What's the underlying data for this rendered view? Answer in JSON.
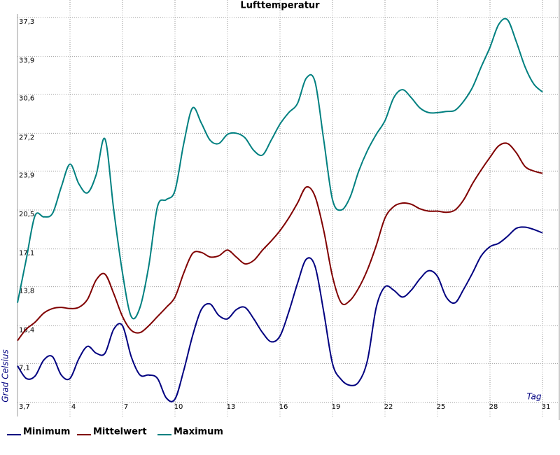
{
  "chart_data": {
    "type": "line",
    "title": "Lufttemperatur",
    "xlabel": "Tag",
    "ylabel": "Grad Celsius",
    "x": [
      1,
      1.5,
      2,
      2.5,
      3,
      3.5,
      4,
      4.5,
      5,
      5.5,
      6,
      6.5,
      7,
      7.5,
      8,
      8.5,
      9,
      9.5,
      10,
      10.5,
      11,
      11.5,
      12,
      12.5,
      13,
      13.5,
      14,
      14.5,
      15,
      15.5,
      16,
      16.5,
      17,
      17.5,
      18,
      18.5,
      19,
      19.5,
      20,
      20.5,
      21,
      21.5,
      22,
      22.5,
      23,
      23.5,
      24,
      24.5,
      25,
      25.5,
      26,
      26.5,
      27,
      27.5,
      28,
      28.5,
      29,
      29.5,
      30,
      30.5,
      31
    ],
    "series": [
      {
        "name": "Minimum",
        "color": "#000080",
        "values": [
          6.9,
          5.8,
          6.0,
          7.4,
          7.7,
          6.1,
          5.8,
          7.5,
          8.6,
          8.0,
          8.0,
          10.1,
          10.4,
          7.7,
          6.1,
          6.1,
          5.8,
          4.1,
          4.0,
          6.5,
          9.5,
          11.8,
          12.3,
          11.3,
          11.0,
          11.8,
          12.0,
          11.0,
          9.8,
          9.0,
          9.5,
          11.6,
          14.1,
          16.2,
          15.6,
          11.6,
          7.1,
          5.7,
          5.2,
          5.5,
          7.4,
          12.0,
          13.8,
          13.5,
          12.9,
          13.5,
          14.5,
          15.2,
          14.7,
          12.9,
          12.4,
          13.6,
          15.0,
          16.5,
          17.3,
          17.6,
          18.2,
          18.9,
          19.0,
          18.8,
          18.5
        ]
      },
      {
        "name": "Mittelwert",
        "color": "#800000",
        "values": [
          9.1,
          10.1,
          10.7,
          11.5,
          11.9,
          12.0,
          11.9,
          12.0,
          12.7,
          14.4,
          14.9,
          13.2,
          11.2,
          10.0,
          9.8,
          10.4,
          11.2,
          12.0,
          12.9,
          15.0,
          16.7,
          16.8,
          16.4,
          16.5,
          17.0,
          16.4,
          15.8,
          16.1,
          17.0,
          17.8,
          18.7,
          19.8,
          21.1,
          22.5,
          21.7,
          18.7,
          14.7,
          12.4,
          12.6,
          13.7,
          15.3,
          17.4,
          19.8,
          20.8,
          21.1,
          21.0,
          20.6,
          20.4,
          20.4,
          20.3,
          20.5,
          21.4,
          22.8,
          24.0,
          25.1,
          26.1,
          26.3,
          25.5,
          24.3,
          23.9,
          23.7
        ]
      },
      {
        "name": "Maximum",
        "color": "#008080",
        "values": [
          12.4,
          16.2,
          20.0,
          19.9,
          20.2,
          22.5,
          24.5,
          22.8,
          22.0,
          23.6,
          26.7,
          20.5,
          15.0,
          11.2,
          12.0,
          15.6,
          20.8,
          21.4,
          22.2,
          26.3,
          29.4,
          28.1,
          26.6,
          26.3,
          27.1,
          27.2,
          26.8,
          25.7,
          25.3,
          26.6,
          28.0,
          29.0,
          29.8,
          32.0,
          31.7,
          26.6,
          21.4,
          20.5,
          21.6,
          23.9,
          25.7,
          27.1,
          28.3,
          30.3,
          31.0,
          30.3,
          29.4,
          29.0,
          29.0,
          29.1,
          29.2,
          30.0,
          31.2,
          33.0,
          34.7,
          36.7,
          37.1,
          35.2,
          33.0,
          31.5,
          30.8
        ]
      }
    ],
    "xlim": [
      1,
      31
    ],
    "xticks": [
      4,
      7,
      10,
      13,
      16,
      19,
      22,
      25,
      28,
      31
    ],
    "ylim": [
      3.7,
      37.3
    ],
    "yticks": [
      {
        "value": 3.7,
        "label": "3,7"
      },
      {
        "value": 7.1,
        "label": "7,1"
      },
      {
        "value": 10.4,
        "label": "10,4"
      },
      {
        "value": 13.8,
        "label": "13,8"
      },
      {
        "value": 17.1,
        "label": "17,1"
      },
      {
        "value": 20.5,
        "label": "20,5"
      },
      {
        "value": 23.9,
        "label": "23,9"
      },
      {
        "value": 27.2,
        "label": "27,2"
      },
      {
        "value": 30.6,
        "label": "30,6"
      },
      {
        "value": 33.9,
        "label": "33,9"
      },
      {
        "value": 37.3,
        "label": "37,3"
      }
    ],
    "grid": true,
    "legend": "bottom"
  }
}
